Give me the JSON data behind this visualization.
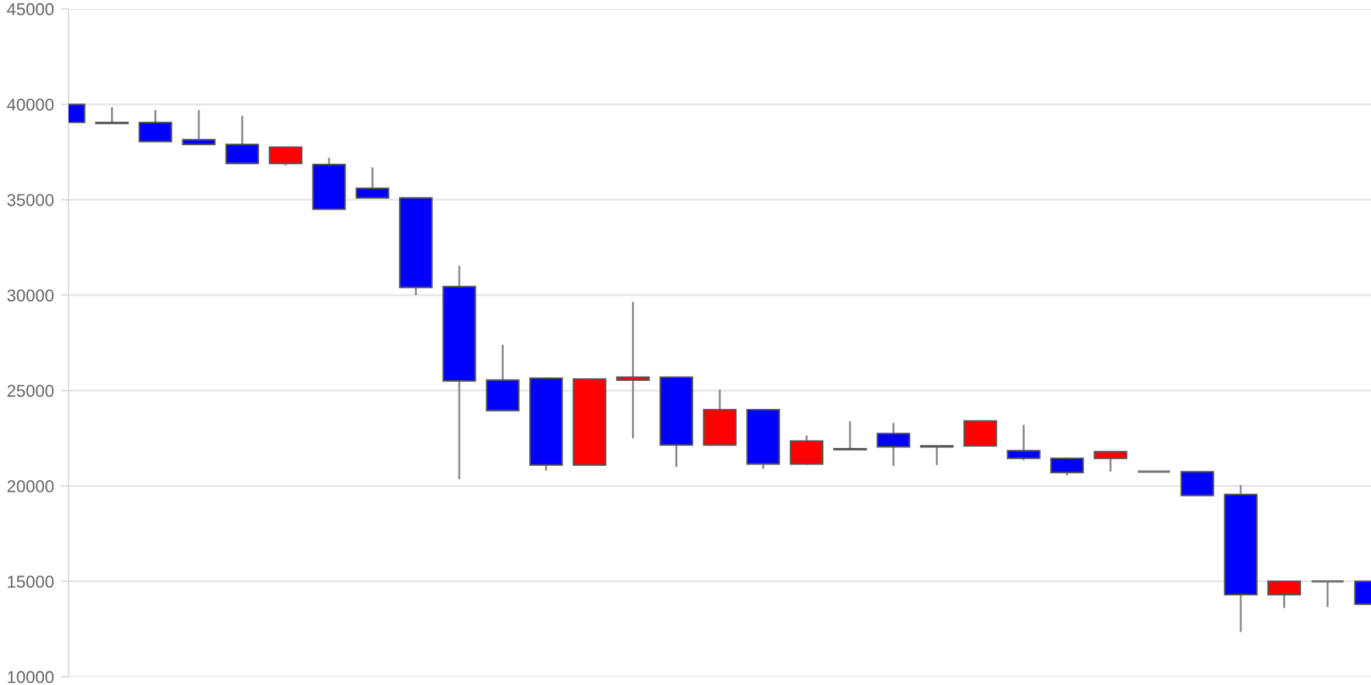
{
  "chart_data": {
    "type": "candlestick",
    "categories": [
      null,
      null,
      null,
      null,
      null,
      null,
      null,
      null,
      null,
      null,
      null,
      null,
      null,
      null,
      null,
      null,
      null,
      null,
      null,
      null,
      null,
      null,
      null,
      null,
      null,
      null,
      null,
      null,
      null,
      null,
      null
    ],
    "ohlc": [
      [
        40000,
        40000,
        39050,
        39050
      ],
      [
        39000,
        39850,
        39000,
        39050
      ],
      [
        39050,
        39700,
        38050,
        38050
      ],
      [
        38150,
        39700,
        37900,
        37900
      ],
      [
        37900,
        39400,
        36900,
        36900
      ],
      [
        36900,
        37750,
        36800,
        37750
      ],
      [
        36850,
        37200,
        34500,
        34500
      ],
      [
        35600,
        36700,
        35100,
        35100
      ],
      [
        35100,
        35100,
        30000,
        30400
      ],
      [
        30450,
        31550,
        20350,
        25500
      ],
      [
        25550,
        27400,
        23950,
        23950
      ],
      [
        25650,
        25700,
        20800,
        21100
      ],
      [
        21100,
        25650,
        21100,
        25600
      ],
      [
        25550,
        29650,
        22500,
        25700
      ],
      [
        25700,
        25700,
        21000,
        22150
      ],
      [
        22150,
        25050,
        22150,
        24000
      ],
      [
        24000,
        24000,
        20900,
        21150
      ],
      [
        21150,
        22650,
        21100,
        22350
      ],
      [
        21900,
        23400,
        21900,
        21950
      ],
      [
        22750,
        23300,
        21050,
        22050
      ],
      [
        22050,
        22100,
        21100,
        22100
      ],
      [
        22100,
        23400,
        22100,
        23400
      ],
      [
        21850,
        23200,
        21350,
        21450
      ],
      [
        21450,
        21500,
        20550,
        20700
      ],
      [
        21450,
        21800,
        20750,
        21800
      ],
      [
        20750,
        20750,
        20750,
        20750
      ],
      [
        20750,
        20750,
        19500,
        19500
      ],
      [
        19550,
        20050,
        12350,
        14300
      ],
      [
        14300,
        15000,
        13600,
        15000
      ],
      [
        15000,
        15000,
        13650,
        15000
      ],
      [
        15000,
        15000,
        13800,
        13800
      ]
    ],
    "colors": [
      "#0000ff",
      "#ff0000",
      "#0000ff",
      "#0000ff",
      "#0000ff",
      "#ff0000",
      "#0000ff",
      "#0000ff",
      "#0000ff",
      "#0000ff",
      "#0000ff",
      "#0000ff",
      "#ff0000",
      "#ff0000",
      "#0000ff",
      "#ff0000",
      "#0000ff",
      "#ff0000",
      "#ff0000",
      "#0000ff",
      "#ff0000",
      "#ff0000",
      "#0000ff",
      "#0000ff",
      "#ff0000",
      "#777777",
      "#0000ff",
      "#0000ff",
      "#ff0000",
      "#777777",
      "#0000ff"
    ],
    "ylim": [
      10000,
      45000
    ],
    "yticks": [
      10000,
      15000,
      20000,
      25000,
      30000,
      35000,
      40000,
      45000
    ],
    "grid": "y",
    "tick_labels": "y"
  }
}
